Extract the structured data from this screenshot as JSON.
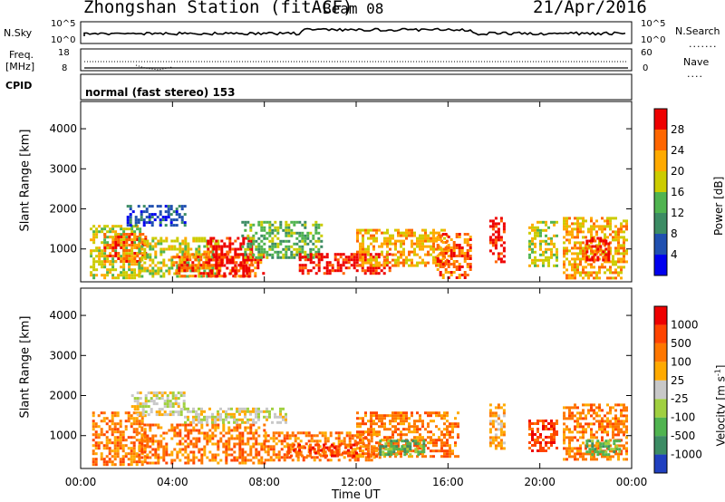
{
  "header": {
    "station": "Zhongshan Station (fitACF)",
    "beam": "Beam 08",
    "date": "21/Apr/2016"
  },
  "strip": {
    "nsky_label": "N.Sky",
    "nsearch_label": "N.Search",
    "nsky_ticks": [
      "10^5",
      "10^0"
    ],
    "nsearch_ticks": [
      "10^5",
      "10^0"
    ],
    "freq_label_top": "Freq.",
    "freq_label_bottom": "[MHz]",
    "freq_ticks": [
      "18",
      "8"
    ],
    "nave_label": "Nave",
    "nave_ticks": [
      "60",
      "0"
    ],
    "cpid_label": "CPID",
    "cpid_text": "normal (fast stereo) 153"
  },
  "chart_data": [
    {
      "type": "heatmap",
      "title": "",
      "xlabel": "Time UT",
      "ylabel": "Slant Range [km]",
      "x_ticks": [
        "00:00",
        "04:00",
        "08:00",
        "12:00",
        "16:00",
        "20:00",
        "00:00"
      ],
      "y_ticks": [
        "1000",
        "2000",
        "3000",
        "4000"
      ],
      "xlim_hours": [
        0,
        24
      ],
      "ylim_km": [
        180,
        4680
      ],
      "colorbar": {
        "label": "Power [dB]",
        "ticks": [
          "4",
          "8",
          "12",
          "16",
          "20",
          "24",
          "28"
        ],
        "colors": [
          "#0000ee",
          "#2050b0",
          "#3c8c64",
          "#50b450",
          "#cccc00",
          "#ffaa00",
          "#ff6600",
          "#ee0000"
        ]
      },
      "patches": [
        {
          "t0": 0.4,
          "t1": 2.6,
          "r0": 300,
          "r1": 1600,
          "level": 4
        },
        {
          "t0": 1.0,
          "t1": 2.8,
          "r0": 700,
          "r1": 1400,
          "level": 6
        },
        {
          "t0": 2.0,
          "t1": 4.5,
          "r0": 1600,
          "r1": 2100,
          "level": 1
        },
        {
          "t0": 2.5,
          "t1": 6.0,
          "r0": 300,
          "r1": 1300,
          "level": 4
        },
        {
          "t0": 4.0,
          "t1": 8.0,
          "r0": 300,
          "r1": 900,
          "level": 6
        },
        {
          "t0": 5.5,
          "t1": 7.5,
          "r0": 300,
          "r1": 1300,
          "level": 7
        },
        {
          "t0": 7.0,
          "t1": 10.5,
          "r0": 800,
          "r1": 1700,
          "level": 3
        },
        {
          "t0": 9.5,
          "t1": 13.5,
          "r0": 400,
          "r1": 900,
          "level": 7
        },
        {
          "t0": 12.0,
          "t1": 16.0,
          "r0": 600,
          "r1": 1500,
          "level": 5
        },
        {
          "t0": 15.5,
          "t1": 17.0,
          "r0": 300,
          "r1": 1400,
          "level": 6
        },
        {
          "t0": 17.8,
          "t1": 18.5,
          "r0": 700,
          "r1": 1800,
          "level": 7
        },
        {
          "t0": 19.5,
          "t1": 20.8,
          "r0": 600,
          "r1": 1700,
          "level": 4
        },
        {
          "t0": 21.0,
          "t1": 23.8,
          "r0": 300,
          "r1": 1800,
          "level": 5
        },
        {
          "t0": 22.0,
          "t1": 23.0,
          "r0": 700,
          "r1": 1300,
          "level": 7
        }
      ]
    },
    {
      "type": "heatmap",
      "title": "",
      "xlabel": "Time UT",
      "ylabel": "Slant Range [km]",
      "x_ticks": [
        "00:00",
        "04:00",
        "08:00",
        "12:00",
        "16:00",
        "20:00",
        "00:00"
      ],
      "y_ticks": [
        "1000",
        "2000",
        "3000",
        "4000"
      ],
      "xlim_hours": [
        0,
        24
      ],
      "ylim_km": [
        180,
        4680
      ],
      "colorbar": {
        "label": "Velocity [m s^-1]",
        "ticks": [
          "1000",
          "500",
          "100",
          "25",
          "-25",
          "-100",
          "-500",
          "-1000"
        ],
        "colors": [
          "#2040c0",
          "#3c8c64",
          "#50b450",
          "#a0d040",
          "#c8c8c8",
          "#ffaa00",
          "#ff7700",
          "#ff4400",
          "#ee0000"
        ]
      },
      "patches": [
        {
          "t0": 0.5,
          "t1": 2.8,
          "r0": 300,
          "r1": 1600,
          "level": 6
        },
        {
          "t0": 2.2,
          "t1": 4.5,
          "r0": 1500,
          "r1": 2100,
          "level": 4
        },
        {
          "t0": 2.5,
          "t1": 8.0,
          "r0": 300,
          "r1": 1300,
          "level": 6
        },
        {
          "t0": 4.5,
          "t1": 9.0,
          "r0": 1300,
          "r1": 1700,
          "level": 4
        },
        {
          "t0": 8.0,
          "t1": 13.0,
          "r0": 400,
          "r1": 1100,
          "level": 6
        },
        {
          "t0": 9.0,
          "t1": 12.0,
          "r0": 500,
          "r1": 800,
          "level": 7
        },
        {
          "t0": 12.0,
          "t1": 16.5,
          "r0": 500,
          "r1": 1600,
          "level": 6
        },
        {
          "t0": 13.0,
          "t1": 15.0,
          "r0": 500,
          "r1": 900,
          "level": 2
        },
        {
          "t0": 17.8,
          "t1": 18.5,
          "r0": 700,
          "r1": 1800,
          "level": 5
        },
        {
          "t0": 19.5,
          "t1": 20.8,
          "r0": 600,
          "r1": 1400,
          "level": 7
        },
        {
          "t0": 21.0,
          "t1": 23.8,
          "r0": 400,
          "r1": 1800,
          "level": 6
        },
        {
          "t0": 22.0,
          "t1": 23.5,
          "r0": 500,
          "r1": 900,
          "level": 2
        }
      ]
    }
  ]
}
